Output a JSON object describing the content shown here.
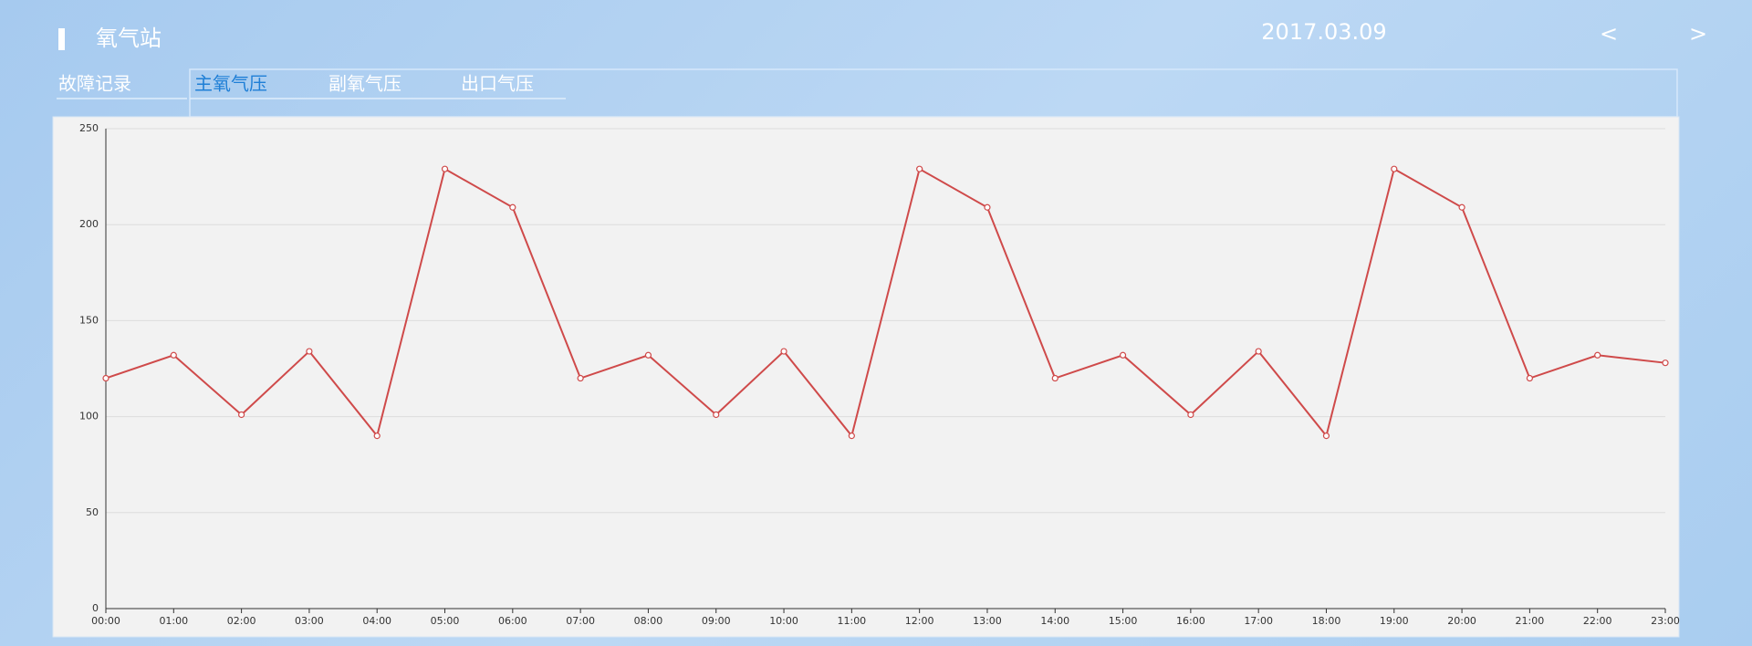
{
  "header": {
    "title": "氧气站",
    "date": "2017.03.09",
    "prev": "<",
    "next": ">"
  },
  "tabs": [
    "故障记录",
    "主氧气压",
    "副氧气压",
    "出口气压"
  ],
  "active_tab": 1,
  "chart_data": {
    "type": "line",
    "categories": [
      "00:00",
      "01:00",
      "02:00",
      "03:00",
      "04:00",
      "05:00",
      "06:00",
      "07:00",
      "08:00",
      "09:00",
      "10:00",
      "11:00",
      "12:00",
      "13:00",
      "14:00",
      "15:00",
      "16:00",
      "17:00",
      "18:00",
      "19:00",
      "20:00",
      "21:00",
      "22:00",
      "23:00"
    ],
    "series": [
      {
        "color": "#cf4a4a",
        "values": [
          120,
          132,
          101,
          134,
          90,
          229,
          209,
          120,
          132,
          101,
          134,
          90,
          229,
          209,
          120,
          132,
          101,
          134,
          90,
          229,
          209,
          120,
          132,
          128
        ]
      }
    ],
    "ylim": [
      0,
      250
    ],
    "yticks": [
      0,
      50,
      100,
      150,
      200,
      250
    ],
    "grid": true
  }
}
